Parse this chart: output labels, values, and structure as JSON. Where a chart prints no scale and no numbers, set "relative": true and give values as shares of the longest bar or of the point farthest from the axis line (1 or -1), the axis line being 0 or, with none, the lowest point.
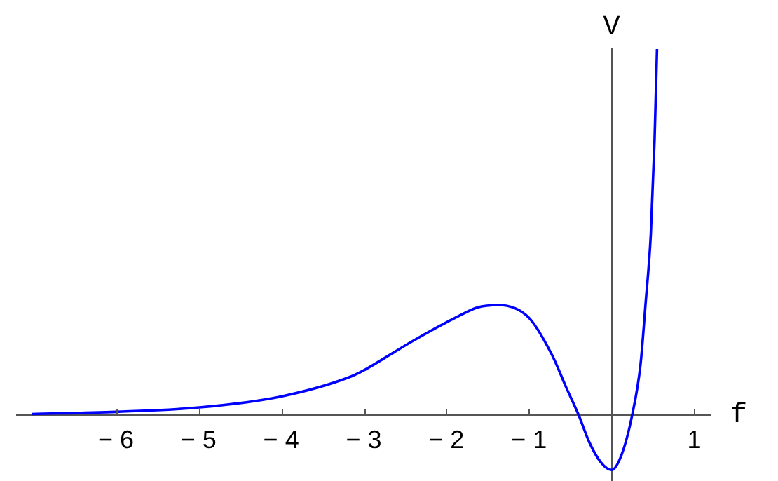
{
  "chart_data": {
    "type": "line",
    "xlabel": "f",
    "ylabel": "V",
    "relative": true,
    "xlim": [
      -7.2,
      1.2
    ],
    "xticks": [
      -6,
      -5,
      -4,
      -3,
      -2,
      -1,
      1
    ],
    "x": [
      -7.02,
      -6,
      -4.99,
      -4.0,
      -3.15,
      -2.98,
      -2.64,
      -2.42,
      -1.85,
      -1.63,
      -1.37,
      -1.0,
      -0.72,
      -0.55,
      -0.4,
      -0.27,
      -0.13,
      0,
      0.12,
      0.25,
      0.35,
      0.41,
      0.475,
      0.52,
      0.55
    ],
    "series": [
      {
        "color": "#0000ff",
        "values": [
          0.002,
          0.008,
          0.02,
          0.05,
          0.105,
          0.124,
          0.17,
          0.2,
          0.27,
          0.293,
          0.3,
          0.265,
          0.163,
          0.075,
          0,
          -0.075,
          -0.13,
          -0.151,
          -0.11,
          0,
          0.137,
          0.3,
          0.495,
          0.75,
          1
        ]
      }
    ],
    "grid": false,
    "legend": false,
    "marker": "none",
    "line_style": "solid"
  }
}
